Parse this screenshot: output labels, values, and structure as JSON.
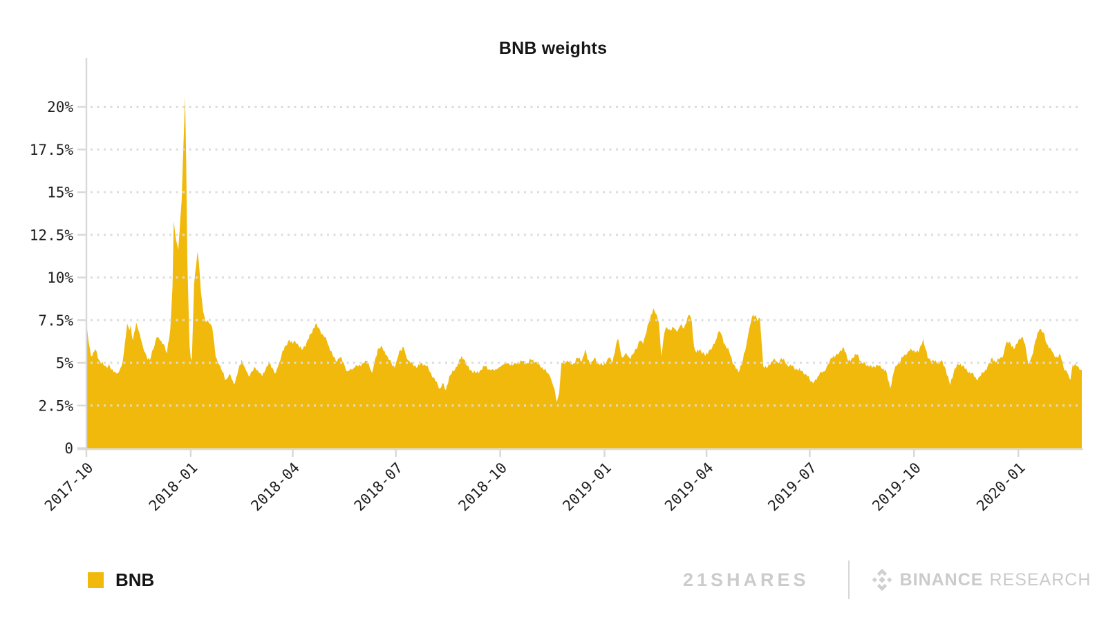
{
  "title": "BNB weights",
  "legend": {
    "label": "BNB",
    "swatch_color": "#F0B90B"
  },
  "branding": {
    "left_wordmark": "21SHARES",
    "right_bold": "BINANCE",
    "right_light": "RESEARCH",
    "icon": "binance-diamond-icon",
    "color": "#cccccc"
  },
  "colors": {
    "area": "#F0B90B",
    "grid": "#dcdcdc",
    "axis": "#d9d9d9",
    "tick_label": "#1f1f1f"
  },
  "chart_data": {
    "type": "area",
    "title": "BNB weights",
    "series_name": "BNB",
    "xlabel": "",
    "ylabel": "",
    "ylim": [
      0,
      21.5
    ],
    "grid": "dotted horizontal lines every 2.5%",
    "legend_position": "bottom-left",
    "y_ticks": [
      {
        "value": 0,
        "label": "0"
      },
      {
        "value": 2.5,
        "label": "2.5%"
      },
      {
        "value": 5,
        "label": "5%"
      },
      {
        "value": 7.5,
        "label": "7.5%"
      },
      {
        "value": 10,
        "label": "10%"
      },
      {
        "value": 12.5,
        "label": "12.5%"
      },
      {
        "value": 15,
        "label": "15%"
      },
      {
        "value": 17.5,
        "label": "17.5%"
      },
      {
        "value": 20,
        "label": "20%"
      }
    ],
    "x_ticks": [
      {
        "date": "2017-10-01",
        "label": "2017-10"
      },
      {
        "date": "2018-01-01",
        "label": "2018-01"
      },
      {
        "date": "2018-04-01",
        "label": "2018-04"
      },
      {
        "date": "2018-07-01",
        "label": "2018-07"
      },
      {
        "date": "2018-10-01",
        "label": "2018-10"
      },
      {
        "date": "2019-01-01",
        "label": "2019-01"
      },
      {
        "date": "2019-04-01",
        "label": "2019-04"
      },
      {
        "date": "2019-07-01",
        "label": "2019-07"
      },
      {
        "date": "2019-10-01",
        "label": "2019-10"
      },
      {
        "date": "2020-01-01",
        "label": "2020-01"
      }
    ],
    "points": [
      [
        "2017-10-01",
        7.4
      ],
      [
        "2017-10-02",
        6.8
      ],
      [
        "2017-10-03",
        6.2
      ],
      [
        "2017-10-05",
        5.4
      ],
      [
        "2017-10-07",
        5.6
      ],
      [
        "2017-10-09",
        5.8
      ],
      [
        "2017-10-11",
        5.3
      ],
      [
        "2017-10-13",
        5.1
      ],
      [
        "2017-10-16",
        4.9
      ],
      [
        "2017-10-19",
        4.7
      ],
      [
        "2017-10-21",
        4.95
      ],
      [
        "2017-10-23",
        4.6
      ],
      [
        "2017-10-26",
        4.5
      ],
      [
        "2017-10-29",
        4.4
      ],
      [
        "2017-11-01",
        4.8
      ],
      [
        "2017-11-03",
        5.6
      ],
      [
        "2017-11-06",
        7.3
      ],
      [
        "2017-11-08",
        6.9
      ],
      [
        "2017-11-09",
        7.2
      ],
      [
        "2017-11-11",
        6.3
      ],
      [
        "2017-11-14",
        7.35
      ],
      [
        "2017-11-16",
        6.9
      ],
      [
        "2017-11-18",
        6.4
      ],
      [
        "2017-11-20",
        5.9
      ],
      [
        "2017-11-23",
        5.4
      ],
      [
        "2017-11-26",
        5.15
      ],
      [
        "2017-11-29",
        5.8
      ],
      [
        "2017-12-02",
        6.5
      ],
      [
        "2017-12-05",
        6.3
      ],
      [
        "2017-12-08",
        6.1
      ],
      [
        "2017-12-11",
        5.55
      ],
      [
        "2017-12-14",
        7.0
      ],
      [
        "2017-12-16",
        9.5
      ],
      [
        "2017-12-17",
        13.3
      ],
      [
        "2017-12-19",
        12.2
      ],
      [
        "2017-12-21",
        11.6
      ],
      [
        "2017-12-24",
        14.5
      ],
      [
        "2017-12-26",
        18.5
      ],
      [
        "2017-12-27",
        20.6
      ],
      [
        "2017-12-28",
        17.0
      ],
      [
        "2017-12-29",
        11.0
      ],
      [
        "2017-12-31",
        6.0
      ],
      [
        "2018-01-01",
        5.3
      ],
      [
        "2018-01-02",
        5.15
      ],
      [
        "2018-01-04",
        9.6
      ],
      [
        "2018-01-07",
        11.5
      ],
      [
        "2018-01-09",
        10.2
      ],
      [
        "2018-01-10",
        9.2
      ],
      [
        "2018-01-12",
        8.0
      ],
      [
        "2018-01-14",
        7.4
      ],
      [
        "2018-01-16",
        7.5
      ],
      [
        "2018-01-18",
        7.3
      ],
      [
        "2018-01-20",
        7.05
      ],
      [
        "2018-01-23",
        5.35
      ],
      [
        "2018-01-26",
        4.9
      ],
      [
        "2018-01-28",
        4.6
      ],
      [
        "2018-02-01",
        4.0
      ],
      [
        "2018-02-03",
        4.15
      ],
      [
        "2018-02-05",
        4.3
      ],
      [
        "2018-02-07",
        3.95
      ],
      [
        "2018-02-09",
        3.8
      ],
      [
        "2018-02-12",
        4.6
      ],
      [
        "2018-02-15",
        5.2
      ],
      [
        "2018-02-18",
        4.7
      ],
      [
        "2018-02-21",
        4.25
      ],
      [
        "2018-02-24",
        4.5
      ],
      [
        "2018-02-27",
        4.7
      ],
      [
        "2018-03-02",
        4.45
      ],
      [
        "2018-03-05",
        4.2
      ],
      [
        "2018-03-08",
        4.6
      ],
      [
        "2018-03-11",
        5.0
      ],
      [
        "2018-03-14",
        4.7
      ],
      [
        "2018-03-17",
        4.4
      ],
      [
        "2018-03-20",
        5.0
      ],
      [
        "2018-03-23",
        5.7
      ],
      [
        "2018-03-26",
        6.0
      ],
      [
        "2018-03-29",
        6.35
      ],
      [
        "2018-04-01",
        6.1
      ],
      [
        "2018-04-03",
        6.3
      ],
      [
        "2018-04-05",
        6.15
      ],
      [
        "2018-04-09",
        5.75
      ],
      [
        "2018-04-13",
        6.15
      ],
      [
        "2018-04-17",
        6.7
      ],
      [
        "2018-04-21",
        7.25
      ],
      [
        "2018-04-24",
        7.05
      ],
      [
        "2018-04-27",
        6.7
      ],
      [
        "2018-05-01",
        6.3
      ],
      [
        "2018-05-03",
        5.95
      ],
      [
        "2018-05-06",
        5.5
      ],
      [
        "2018-05-09",
        5.1
      ],
      [
        "2018-05-12",
        5.25
      ],
      [
        "2018-05-14",
        5.3
      ],
      [
        "2018-05-17",
        4.8
      ],
      [
        "2018-05-19",
        4.5
      ],
      [
        "2018-05-23",
        4.6
      ],
      [
        "2018-05-26",
        4.75
      ],
      [
        "2018-05-29",
        4.8
      ],
      [
        "2018-06-02",
        5.0
      ],
      [
        "2018-06-06",
        5.1
      ],
      [
        "2018-06-10",
        4.4
      ],
      [
        "2018-06-13",
        5.3
      ],
      [
        "2018-06-15",
        5.8
      ],
      [
        "2018-06-19",
        5.9
      ],
      [
        "2018-06-24",
        5.3
      ],
      [
        "2018-06-27",
        5.0
      ],
      [
        "2018-06-30",
        4.7
      ],
      [
        "2018-07-02",
        5.2
      ],
      [
        "2018-07-04",
        5.7
      ],
      [
        "2018-07-08",
        5.9
      ],
      [
        "2018-07-10",
        5.4
      ],
      [
        "2018-07-13",
        5.1
      ],
      [
        "2018-07-16",
        4.9
      ],
      [
        "2018-07-20",
        4.75
      ],
      [
        "2018-07-24",
        5.0
      ],
      [
        "2018-07-28",
        4.8
      ],
      [
        "2018-08-01",
        4.4
      ],
      [
        "2018-08-05",
        3.9
      ],
      [
        "2018-08-09",
        3.5
      ],
      [
        "2018-08-11",
        3.8
      ],
      [
        "2018-08-14",
        3.4
      ],
      [
        "2018-08-17",
        4.2
      ],
      [
        "2018-08-21",
        4.5
      ],
      [
        "2018-08-25",
        5.0
      ],
      [
        "2018-08-28",
        5.4
      ],
      [
        "2018-08-30",
        5.2
      ],
      [
        "2018-09-02",
        4.8
      ],
      [
        "2018-09-06",
        4.5
      ],
      [
        "2018-09-10",
        4.4
      ],
      [
        "2018-09-14",
        4.6
      ],
      [
        "2018-09-18",
        4.8
      ],
      [
        "2018-09-22",
        4.6
      ],
      [
        "2018-09-26",
        4.55
      ],
      [
        "2018-09-30",
        4.75
      ],
      [
        "2018-10-04",
        4.9
      ],
      [
        "2018-10-08",
        5.0
      ],
      [
        "2018-10-12",
        4.85
      ],
      [
        "2018-10-16",
        5.0
      ],
      [
        "2018-10-20",
        5.1
      ],
      [
        "2018-10-24",
        4.95
      ],
      [
        "2018-10-28",
        5.2
      ],
      [
        "2018-11-01",
        5.05
      ],
      [
        "2018-11-05",
        4.85
      ],
      [
        "2018-11-09",
        4.6
      ],
      [
        "2018-11-14",
        4.2
      ],
      [
        "2018-11-17",
        3.6
      ],
      [
        "2018-11-20",
        2.7
      ],
      [
        "2018-11-22",
        3.2
      ],
      [
        "2018-11-24",
        5.0
      ],
      [
        "2018-11-29",
        5.15
      ],
      [
        "2018-12-04",
        4.9
      ],
      [
        "2018-12-08",
        5.3
      ],
      [
        "2018-12-12",
        5.1
      ],
      [
        "2018-12-15",
        5.8
      ],
      [
        "2018-12-17",
        5.2
      ],
      [
        "2018-12-20",
        4.9
      ],
      [
        "2018-12-23",
        5.3
      ],
      [
        "2018-12-26",
        5.0
      ],
      [
        "2018-12-31",
        4.85
      ],
      [
        "2019-01-05",
        5.3
      ],
      [
        "2019-01-08",
        5.0
      ],
      [
        "2019-01-11",
        6.0
      ],
      [
        "2019-01-13",
        6.4
      ],
      [
        "2019-01-15",
        5.7
      ],
      [
        "2019-01-17",
        5.3
      ],
      [
        "2019-01-20",
        5.6
      ],
      [
        "2019-01-23",
        5.3
      ],
      [
        "2019-01-26",
        5.5
      ],
      [
        "2019-01-29",
        5.8
      ],
      [
        "2019-02-01",
        6.3
      ],
      [
        "2019-02-04",
        6.1
      ],
      [
        "2019-02-06",
        6.6
      ],
      [
        "2019-02-08",
        7.2
      ],
      [
        "2019-02-10",
        7.5
      ],
      [
        "2019-02-13",
        8.2
      ],
      [
        "2019-02-15",
        7.9
      ],
      [
        "2019-02-18",
        7.35
      ],
      [
        "2019-02-20",
        5.4
      ],
      [
        "2019-02-23",
        6.8
      ],
      [
        "2019-02-25",
        7.1
      ],
      [
        "2019-02-28",
        6.9
      ],
      [
        "2019-03-03",
        7.05
      ],
      [
        "2019-03-06",
        6.8
      ],
      [
        "2019-03-09",
        7.2
      ],
      [
        "2019-03-12",
        7.0
      ],
      [
        "2019-03-15",
        7.6
      ],
      [
        "2019-03-17",
        7.8
      ],
      [
        "2019-03-19",
        7.4
      ],
      [
        "2019-03-21",
        5.95
      ],
      [
        "2019-03-23",
        5.6
      ],
      [
        "2019-03-26",
        5.8
      ],
      [
        "2019-03-31",
        5.4
      ],
      [
        "2019-04-03",
        5.7
      ],
      [
        "2019-04-06",
        5.9
      ],
      [
        "2019-04-09",
        6.3
      ],
      [
        "2019-04-11",
        6.75
      ],
      [
        "2019-04-13",
        6.8
      ],
      [
        "2019-04-17",
        6.1
      ],
      [
        "2019-04-21",
        5.65
      ],
      [
        "2019-04-25",
        4.9
      ],
      [
        "2019-04-29",
        4.45
      ],
      [
        "2019-05-03",
        5.15
      ],
      [
        "2019-05-06",
        6.0
      ],
      [
        "2019-05-08",
        6.75
      ],
      [
        "2019-05-11",
        7.65
      ],
      [
        "2019-05-14",
        7.8
      ],
      [
        "2019-05-16",
        7.45
      ],
      [
        "2019-05-18",
        7.65
      ],
      [
        "2019-05-21",
        4.8
      ],
      [
        "2019-05-25",
        4.75
      ],
      [
        "2019-05-30",
        5.2
      ],
      [
        "2019-06-03",
        5.0
      ],
      [
        "2019-06-06",
        5.3
      ],
      [
        "2019-06-11",
        4.9
      ],
      [
        "2019-06-15",
        4.8
      ],
      [
        "2019-06-20",
        4.6
      ],
      [
        "2019-06-25",
        4.5
      ],
      [
        "2019-06-29",
        4.2
      ],
      [
        "2019-07-04",
        3.8
      ],
      [
        "2019-07-07",
        4.0
      ],
      [
        "2019-07-10",
        4.4
      ],
      [
        "2019-07-14",
        4.5
      ],
      [
        "2019-07-19",
        5.2
      ],
      [
        "2019-07-24",
        5.45
      ],
      [
        "2019-07-27",
        5.6
      ],
      [
        "2019-07-31",
        5.9
      ],
      [
        "2019-08-04",
        5.1
      ],
      [
        "2019-08-08",
        5.3
      ],
      [
        "2019-08-12",
        5.5
      ],
      [
        "2019-08-16",
        5.0
      ],
      [
        "2019-08-21",
        4.9
      ],
      [
        "2019-08-25",
        4.7
      ],
      [
        "2019-08-29",
        4.9
      ],
      [
        "2019-09-02",
        4.7
      ],
      [
        "2019-09-06",
        4.6
      ],
      [
        "2019-09-10",
        3.5
      ],
      [
        "2019-09-13",
        4.4
      ],
      [
        "2019-09-15",
        4.85
      ],
      [
        "2019-09-18",
        5.05
      ],
      [
        "2019-09-23",
        5.5
      ],
      [
        "2019-09-27",
        5.7
      ],
      [
        "2019-10-01",
        5.75
      ],
      [
        "2019-10-05",
        5.6
      ],
      [
        "2019-10-09",
        6.4
      ],
      [
        "2019-10-13",
        5.3
      ],
      [
        "2019-10-17",
        5.15
      ],
      [
        "2019-10-21",
        5.0
      ],
      [
        "2019-10-25",
        5.15
      ],
      [
        "2019-10-29",
        4.6
      ],
      [
        "2019-11-02",
        3.7
      ],
      [
        "2019-11-06",
        4.7
      ],
      [
        "2019-11-09",
        4.9
      ],
      [
        "2019-11-13",
        4.85
      ],
      [
        "2019-11-17",
        4.5
      ],
      [
        "2019-11-21",
        4.4
      ],
      [
        "2019-11-25",
        4.05
      ],
      [
        "2019-11-29",
        4.25
      ],
      [
        "2019-12-03",
        4.6
      ],
      [
        "2019-12-07",
        5.0
      ],
      [
        "2019-12-09",
        5.3
      ],
      [
        "2019-12-12",
        5.0
      ],
      [
        "2019-12-15",
        5.2
      ],
      [
        "2019-12-19",
        5.5
      ],
      [
        "2019-12-21",
        6.1
      ],
      [
        "2019-12-24",
        6.25
      ],
      [
        "2019-12-28",
        5.8
      ],
      [
        "2020-01-01",
        6.3
      ],
      [
        "2020-01-05",
        6.5
      ],
      [
        "2020-01-07",
        6.1
      ],
      [
        "2020-01-10",
        4.9
      ],
      [
        "2020-01-13",
        5.4
      ],
      [
        "2020-01-16",
        6.3
      ],
      [
        "2020-01-20",
        7.0
      ],
      [
        "2020-01-23",
        6.8
      ],
      [
        "2020-01-26",
        6.1
      ],
      [
        "2020-01-29",
        5.9
      ],
      [
        "2020-02-01",
        5.55
      ],
      [
        "2020-02-03",
        5.3
      ],
      [
        "2020-02-07",
        5.5
      ],
      [
        "2020-02-10",
        4.7
      ],
      [
        "2020-02-13",
        4.45
      ],
      [
        "2020-02-15",
        4.1
      ],
      [
        "2020-02-16",
        4.0
      ],
      [
        "2020-02-18",
        4.9
      ],
      [
        "2020-02-21",
        4.85
      ],
      [
        "2020-02-24",
        4.6
      ],
      [
        "2020-02-26",
        4.6
      ]
    ]
  }
}
